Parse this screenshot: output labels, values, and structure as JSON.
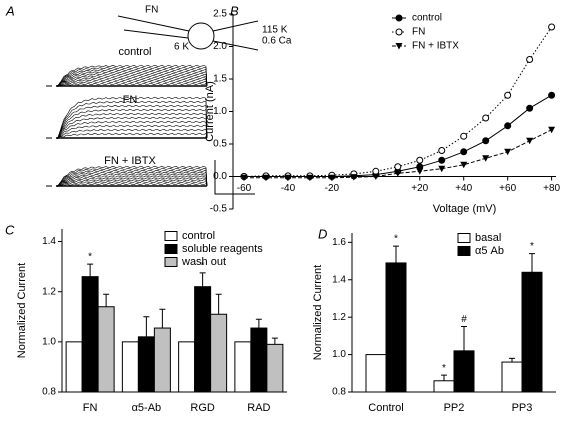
{
  "panel_a": {
    "panel": "A",
    "labels": {
      "pipette": "FN",
      "inside": "6 K",
      "outside_k": "115 K",
      "outside_ca": "0.6 Ca"
    },
    "traces": [
      "control",
      "FN",
      "FN + IBTX"
    ]
  },
  "chart_data": [
    {
      "type": "line",
      "panel": "B",
      "xlabel": "Voltage (mV)",
      "ylabel": "Current (nA)",
      "x": [
        -60,
        -50,
        -40,
        -30,
        -20,
        -10,
        0,
        10,
        20,
        30,
        40,
        50,
        60,
        70,
        80
      ],
      "series": [
        {
          "name": "control",
          "color": "#000000",
          "marker": "filled-circle",
          "line": "solid",
          "values": [
            0,
            0,
            0,
            0,
            0,
            0.01,
            0.03,
            0.08,
            0.15,
            0.25,
            0.38,
            0.55,
            0.78,
            1.05,
            1.25
          ]
        },
        {
          "name": "FN",
          "color": "#000000",
          "marker": "open-circle",
          "line": "dotted",
          "values": [
            0,
            0.01,
            0.01,
            0.01,
            0.02,
            0.04,
            0.08,
            0.15,
            0.25,
            0.4,
            0.62,
            0.9,
            1.25,
            1.8,
            2.3
          ]
        },
        {
          "name": "FN + IBTX",
          "color": "#000000",
          "marker": "triangle-down",
          "line": "dashed",
          "values": [
            -0.02,
            -0.02,
            -0.02,
            -0.02,
            -0.02,
            -0.01,
            0,
            0.05,
            0.08,
            0.12,
            0.18,
            0.28,
            0.38,
            0.55,
            0.72
          ]
        }
      ],
      "xlim": [
        -65,
        82
      ],
      "xticks": [
        -60,
        -40,
        -20,
        {
          "value": 20,
          "label": "+20"
        },
        {
          "value": 40,
          "label": "+40"
        },
        {
          "value": 60,
          "label": "+60"
        },
        {
          "value": 80,
          "label": "+80"
        }
      ],
      "ylim": [
        -0.5,
        2.5
      ],
      "yticks": [
        -0.5,
        {
          "value": 0,
          "label": "0.0"
        },
        0.5,
        {
          "value": 1,
          "label": "1.0"
        },
        1.5,
        {
          "value": 2,
          "label": "2.0"
        },
        2.5
      ],
      "legend": "upper center"
    },
    {
      "type": "bar",
      "panel": "C",
      "ylabel": "Normalized Current",
      "categories": [
        "FN",
        "α5-Ab",
        "RGD",
        "RAD"
      ],
      "series": [
        {
          "name": "control",
          "color": "#ffffff",
          "values": [
            1,
            1,
            1,
            1
          ]
        },
        {
          "name": "soluble reagents",
          "color": "#000000",
          "values": [
            1.26,
            1.02,
            1.22,
            1.055
          ],
          "errors": [
            0.05,
            0.08,
            0.055,
            0.035
          ],
          "annotations": [
            "*",
            null,
            "*",
            null
          ]
        },
        {
          "name": "wash out",
          "color": "#c0c0c0",
          "values": [
            1.14,
            1.055,
            1.11,
            0.99
          ],
          "errors": [
            0.05,
            0.075,
            0.08,
            0.025
          ]
        }
      ],
      "ylim": [
        0.8,
        1.45
      ],
      "yticks": [
        0.8,
        {
          "value": 1,
          "label": "1.0"
        },
        1.2,
        1.4
      ],
      "legend": "upper right"
    },
    {
      "type": "bar",
      "panel": "D",
      "ylabel": "Normalized Current",
      "categories": [
        "Control",
        "PP2",
        "PP3"
      ],
      "series": [
        {
          "name": "basal",
          "color": "#ffffff",
          "values": [
            1,
            0.86,
            0.96
          ],
          "errors": [
            null,
            0.03,
            0.02
          ],
          "annotations": [
            null,
            "*",
            null
          ]
        },
        {
          "name": "α5 Ab",
          "color": "#000000",
          "values": [
            1.49,
            1.02,
            1.44
          ],
          "errors": [
            0.09,
            0.13,
            0.1
          ],
          "annotations": [
            "*",
            "#",
            "*"
          ]
        }
      ],
      "ylim": [
        0.8,
        1.65
      ],
      "yticks": [
        0.8,
        {
          "value": 1,
          "label": "1.0"
        },
        1.2,
        1.4,
        1.6
      ],
      "legend": "upper right"
    }
  ]
}
